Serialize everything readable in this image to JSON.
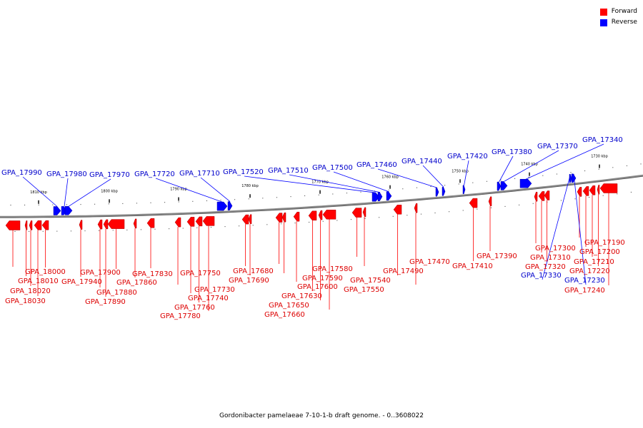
{
  "legend": {
    "forward_label": "Forward",
    "reverse_label": "Reverse",
    "forward_color": "#ff0000",
    "reverse_color": "#0000ff"
  },
  "caption": "Gordonibacter pamelaeae 7-10-1-b draft genome. - 0..3608022",
  "scale_labels": [
    "1810 kbp",
    "1800 kbp",
    "1790 kbp",
    "1780 kbp",
    "1770 kbp",
    "1760 kbp",
    "1750 kbp",
    "1740 kbp",
    "1730 kbp"
  ],
  "genes": [
    {
      "id": "GPA_17990",
      "strand": "reverse"
    },
    {
      "id": "GPA_17980",
      "strand": "reverse"
    },
    {
      "id": "GPA_17970",
      "strand": "reverse"
    },
    {
      "id": "GPA_17720",
      "strand": "reverse"
    },
    {
      "id": "GPA_17710",
      "strand": "reverse"
    },
    {
      "id": "GPA_17520",
      "strand": "reverse"
    },
    {
      "id": "GPA_17510",
      "strand": "reverse"
    },
    {
      "id": "GPA_17500",
      "strand": "reverse"
    },
    {
      "id": "GPA_17460",
      "strand": "reverse"
    },
    {
      "id": "GPA_17440",
      "strand": "reverse"
    },
    {
      "id": "GPA_17420",
      "strand": "reverse"
    },
    {
      "id": "GPA_17380",
      "strand": "reverse"
    },
    {
      "id": "GPA_17370",
      "strand": "reverse"
    },
    {
      "id": "GPA_17340",
      "strand": "reverse"
    },
    {
      "id": "GPA_18000",
      "strand": "forward"
    },
    {
      "id": "GPA_18010",
      "strand": "forward"
    },
    {
      "id": "GPA_18020",
      "strand": "forward"
    },
    {
      "id": "GPA_18030",
      "strand": "forward"
    },
    {
      "id": "GPA_17900",
      "strand": "forward"
    },
    {
      "id": "GPA_17940",
      "strand": "forward"
    },
    {
      "id": "GPA_17880",
      "strand": "forward"
    },
    {
      "id": "GPA_17890",
      "strand": "forward"
    },
    {
      "id": "GPA_17830",
      "strand": "forward"
    },
    {
      "id": "GPA_17860",
      "strand": "forward"
    },
    {
      "id": "GPA_17750",
      "strand": "forward"
    },
    {
      "id": "GPA_17730",
      "strand": "forward"
    },
    {
      "id": "GPA_17740",
      "strand": "forward"
    },
    {
      "id": "GPA_17760",
      "strand": "forward"
    },
    {
      "id": "GPA_17780",
      "strand": "forward"
    },
    {
      "id": "GPA_17680",
      "strand": "forward"
    },
    {
      "id": "GPA_17690",
      "strand": "forward"
    },
    {
      "id": "GPA_17580",
      "strand": "forward"
    },
    {
      "id": "GPA_17590",
      "strand": "forward"
    },
    {
      "id": "GPA_17600",
      "strand": "forward"
    },
    {
      "id": "GPA_17630",
      "strand": "forward"
    },
    {
      "id": "GPA_17650",
      "strand": "forward"
    },
    {
      "id": "GPA_17660",
      "strand": "forward"
    },
    {
      "id": "GPA_17470",
      "strand": "forward"
    },
    {
      "id": "GPA_17490",
      "strand": "forward"
    },
    {
      "id": "GPA_17540",
      "strand": "forward"
    },
    {
      "id": "GPA_17550",
      "strand": "forward"
    },
    {
      "id": "GPA_17410",
      "strand": "forward"
    },
    {
      "id": "GPA_17390",
      "strand": "forward"
    },
    {
      "id": "GPA_17300",
      "strand": "forward"
    },
    {
      "id": "GPA_17310",
      "strand": "forward"
    },
    {
      "id": "GPA_17320",
      "strand": "forward"
    },
    {
      "id": "GPA_17330",
      "strand": "reverse"
    },
    {
      "id": "GPA_17190",
      "strand": "forward"
    },
    {
      "id": "GPA_17200",
      "strand": "forward"
    },
    {
      "id": "GPA_17210",
      "strand": "forward"
    },
    {
      "id": "GPA_17220",
      "strand": "forward"
    },
    {
      "id": "GPA_17230",
      "strand": "reverse"
    },
    {
      "id": "GPA_17240",
      "strand": "forward"
    }
  ]
}
